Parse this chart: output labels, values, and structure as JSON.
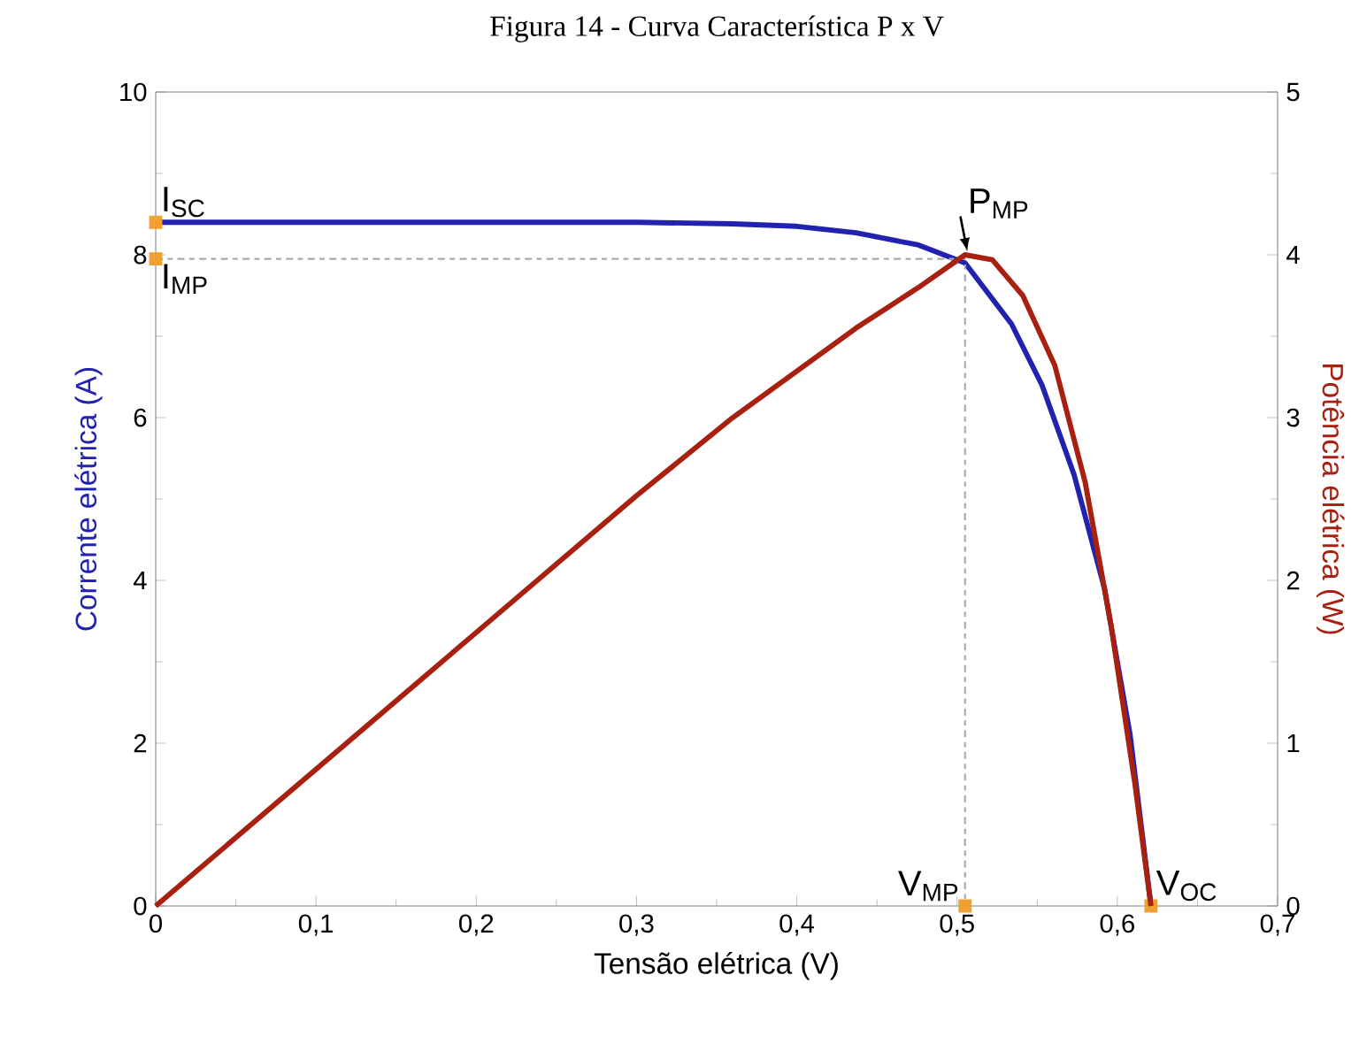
{
  "chart_data": {
    "type": "line",
    "title": "Figura 14 - Curva Característica P x V",
    "xlabel": "Tensão elétrica (V)",
    "ylabel": "Corrente elétrica (A)",
    "y2label": "Potência elétrica (W)",
    "series": [
      {
        "color": "#2222b0",
        "x": [
          0,
          0.1,
          0.2,
          0.3,
          0.36,
          0.4,
          0.437,
          0.476,
          0.505,
          0.534,
          0.553,
          0.573,
          0.592,
          0.608,
          0.621
        ],
        "values": [
          8.4,
          8.4,
          8.4,
          8.4,
          8.38,
          8.35,
          8.27,
          8.12,
          7.9,
          7.15,
          6.4,
          5.3,
          3.9,
          2.1,
          0
        ]
      },
      {
        "axis": "y2",
        "color": "#a82010",
        "x": [
          0,
          0.1,
          0.2,
          0.3,
          0.36,
          0.437,
          0.476,
          0.505,
          0.522,
          0.541,
          0.561,
          0.58,
          0.596,
          0.611,
          0.621
        ],
        "values": [
          0,
          0.84,
          1.68,
          2.52,
          3.0,
          3.55,
          3.8,
          4.0,
          3.97,
          3.75,
          3.32,
          2.6,
          1.73,
          0.75,
          0
        ]
      },
      {
        "type": "line",
        "line_style": "dashed",
        "color": "#aaaaaa",
        "x": [
          0,
          0.505,
          0.505
        ],
        "values": [
          7.95,
          7.95,
          0
        ]
      },
      {
        "type": "scatter",
        "marker": "square",
        "color": "#f0a030",
        "x": [
          0,
          0,
          0.505,
          0.621
        ],
        "values": [
          8.4,
          7.95,
          0,
          0
        ]
      }
    ],
    "xlim": [
      0,
      0.7
    ],
    "xticks": [
      0,
      {
        "value": 0.1,
        "label": "0,1"
      },
      {
        "value": 0.2,
        "label": "0,2"
      },
      {
        "value": 0.3,
        "label": "0,3"
      },
      {
        "value": 0.4,
        "label": "0,4"
      },
      {
        "value": 0.5,
        "label": "0,5"
      },
      {
        "value": 0.6,
        "label": "0,6"
      },
      {
        "value": 0.7,
        "label": "0,7"
      }
    ],
    "ylim": [
      0,
      10
    ],
    "yticks": [
      0,
      2,
      4,
      6,
      8,
      10
    ],
    "y2lim": [
      0,
      5
    ],
    "y2ticks": [
      0,
      1,
      2,
      3,
      4,
      5
    ],
    "annotations": [
      {
        "text": "I$_{SC}$",
        "x": 0,
        "y": 8.4
      },
      {
        "text": "I$_{MP}$",
        "x": 0,
        "y": 7.95
      },
      {
        "text": "P$_{MP}$",
        "x": 0.505,
        "y": 7.95
      },
      {
        "text": "V$_{MP}$",
        "x": 0.505,
        "y": 0
      },
      {
        "text": "V$_{OC}$",
        "x": 0.621,
        "y": 0
      }
    ]
  }
}
